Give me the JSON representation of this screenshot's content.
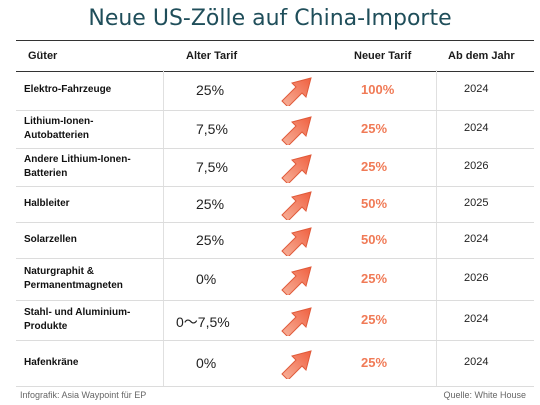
{
  "title": "Neue US-Zölle auf China-Importe",
  "headers": {
    "goods": "Güter",
    "old": "Alter Tarif",
    "new": "Neuer Tarif",
    "year": "Ab dem Jahr"
  },
  "rows": [
    {
      "goods": "Elektro-Fahrzeuge",
      "old": "25%",
      "new": "100%",
      "year": "2024"
    },
    {
      "goods": "Lithium-Ionen-\nAutobatterien",
      "old": "7,5%",
      "new": "25%",
      "year": "2024"
    },
    {
      "goods": "Andere Lithium-Ionen-\nBatterien",
      "old": "7,5%",
      "new": "25%",
      "year": "2026"
    },
    {
      "goods": "Halbleiter",
      "old": "25%",
      "new": "50%",
      "year": "2025"
    },
    {
      "goods": "Solarzellen",
      "old": "25%",
      "new": "50%",
      "year": "2024"
    },
    {
      "goods": "Naturgraphit &\nPermanentmagneten",
      "old": "0%",
      "new": "25%",
      "year": "2026"
    },
    {
      "goods": "Stahl- und Aluminium-\nProdukte",
      "old": "0〜7,5%",
      "new": "25%",
      "year": "2024"
    },
    {
      "goods": "Hafenkräne",
      "old": "0%",
      "new": "25%",
      "year": "2024"
    }
  ],
  "footer": {
    "credit": "Infografik: Asia Waypoint für EP",
    "source": "Quelle: White House"
  },
  "colors": {
    "accent": "#f07a56",
    "title": "#1f4e5a"
  },
  "icons": {
    "arrow": "up-right-arrow-icon"
  }
}
